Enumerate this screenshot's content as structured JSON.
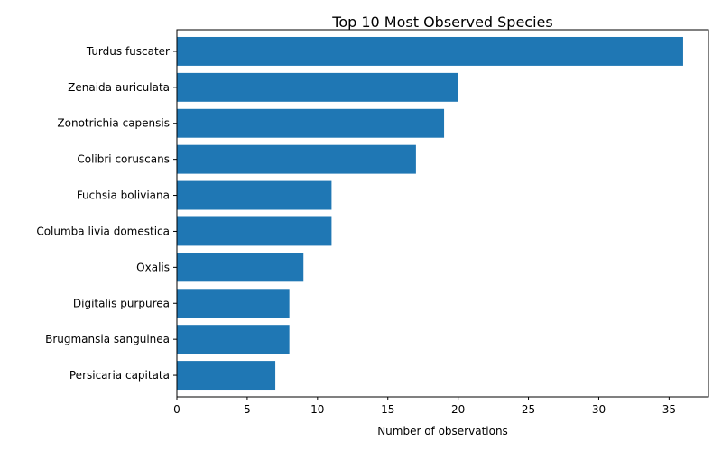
{
  "chart_data": {
    "type": "bar",
    "orientation": "horizontal",
    "title": "Top 10 Most Observed Species",
    "xlabel": "Number of observations",
    "ylabel": "",
    "categories": [
      "Turdus fuscater",
      "Zenaida auriculata",
      "Zonotrichia capensis",
      "Colibri coruscans",
      "Fuchsia boliviana",
      "Columba livia domestica",
      "Oxalis",
      "Digitalis purpurea",
      "Brugmansia sanguinea",
      "Persicaria capitata"
    ],
    "values": [
      36,
      20,
      19,
      17,
      11,
      11,
      9,
      8,
      8,
      7
    ],
    "xlim": [
      0,
      37.8
    ],
    "xticks": [
      0,
      5,
      10,
      15,
      20,
      25,
      30,
      35
    ],
    "grid": false,
    "bar_color": "#1f77b4"
  }
}
